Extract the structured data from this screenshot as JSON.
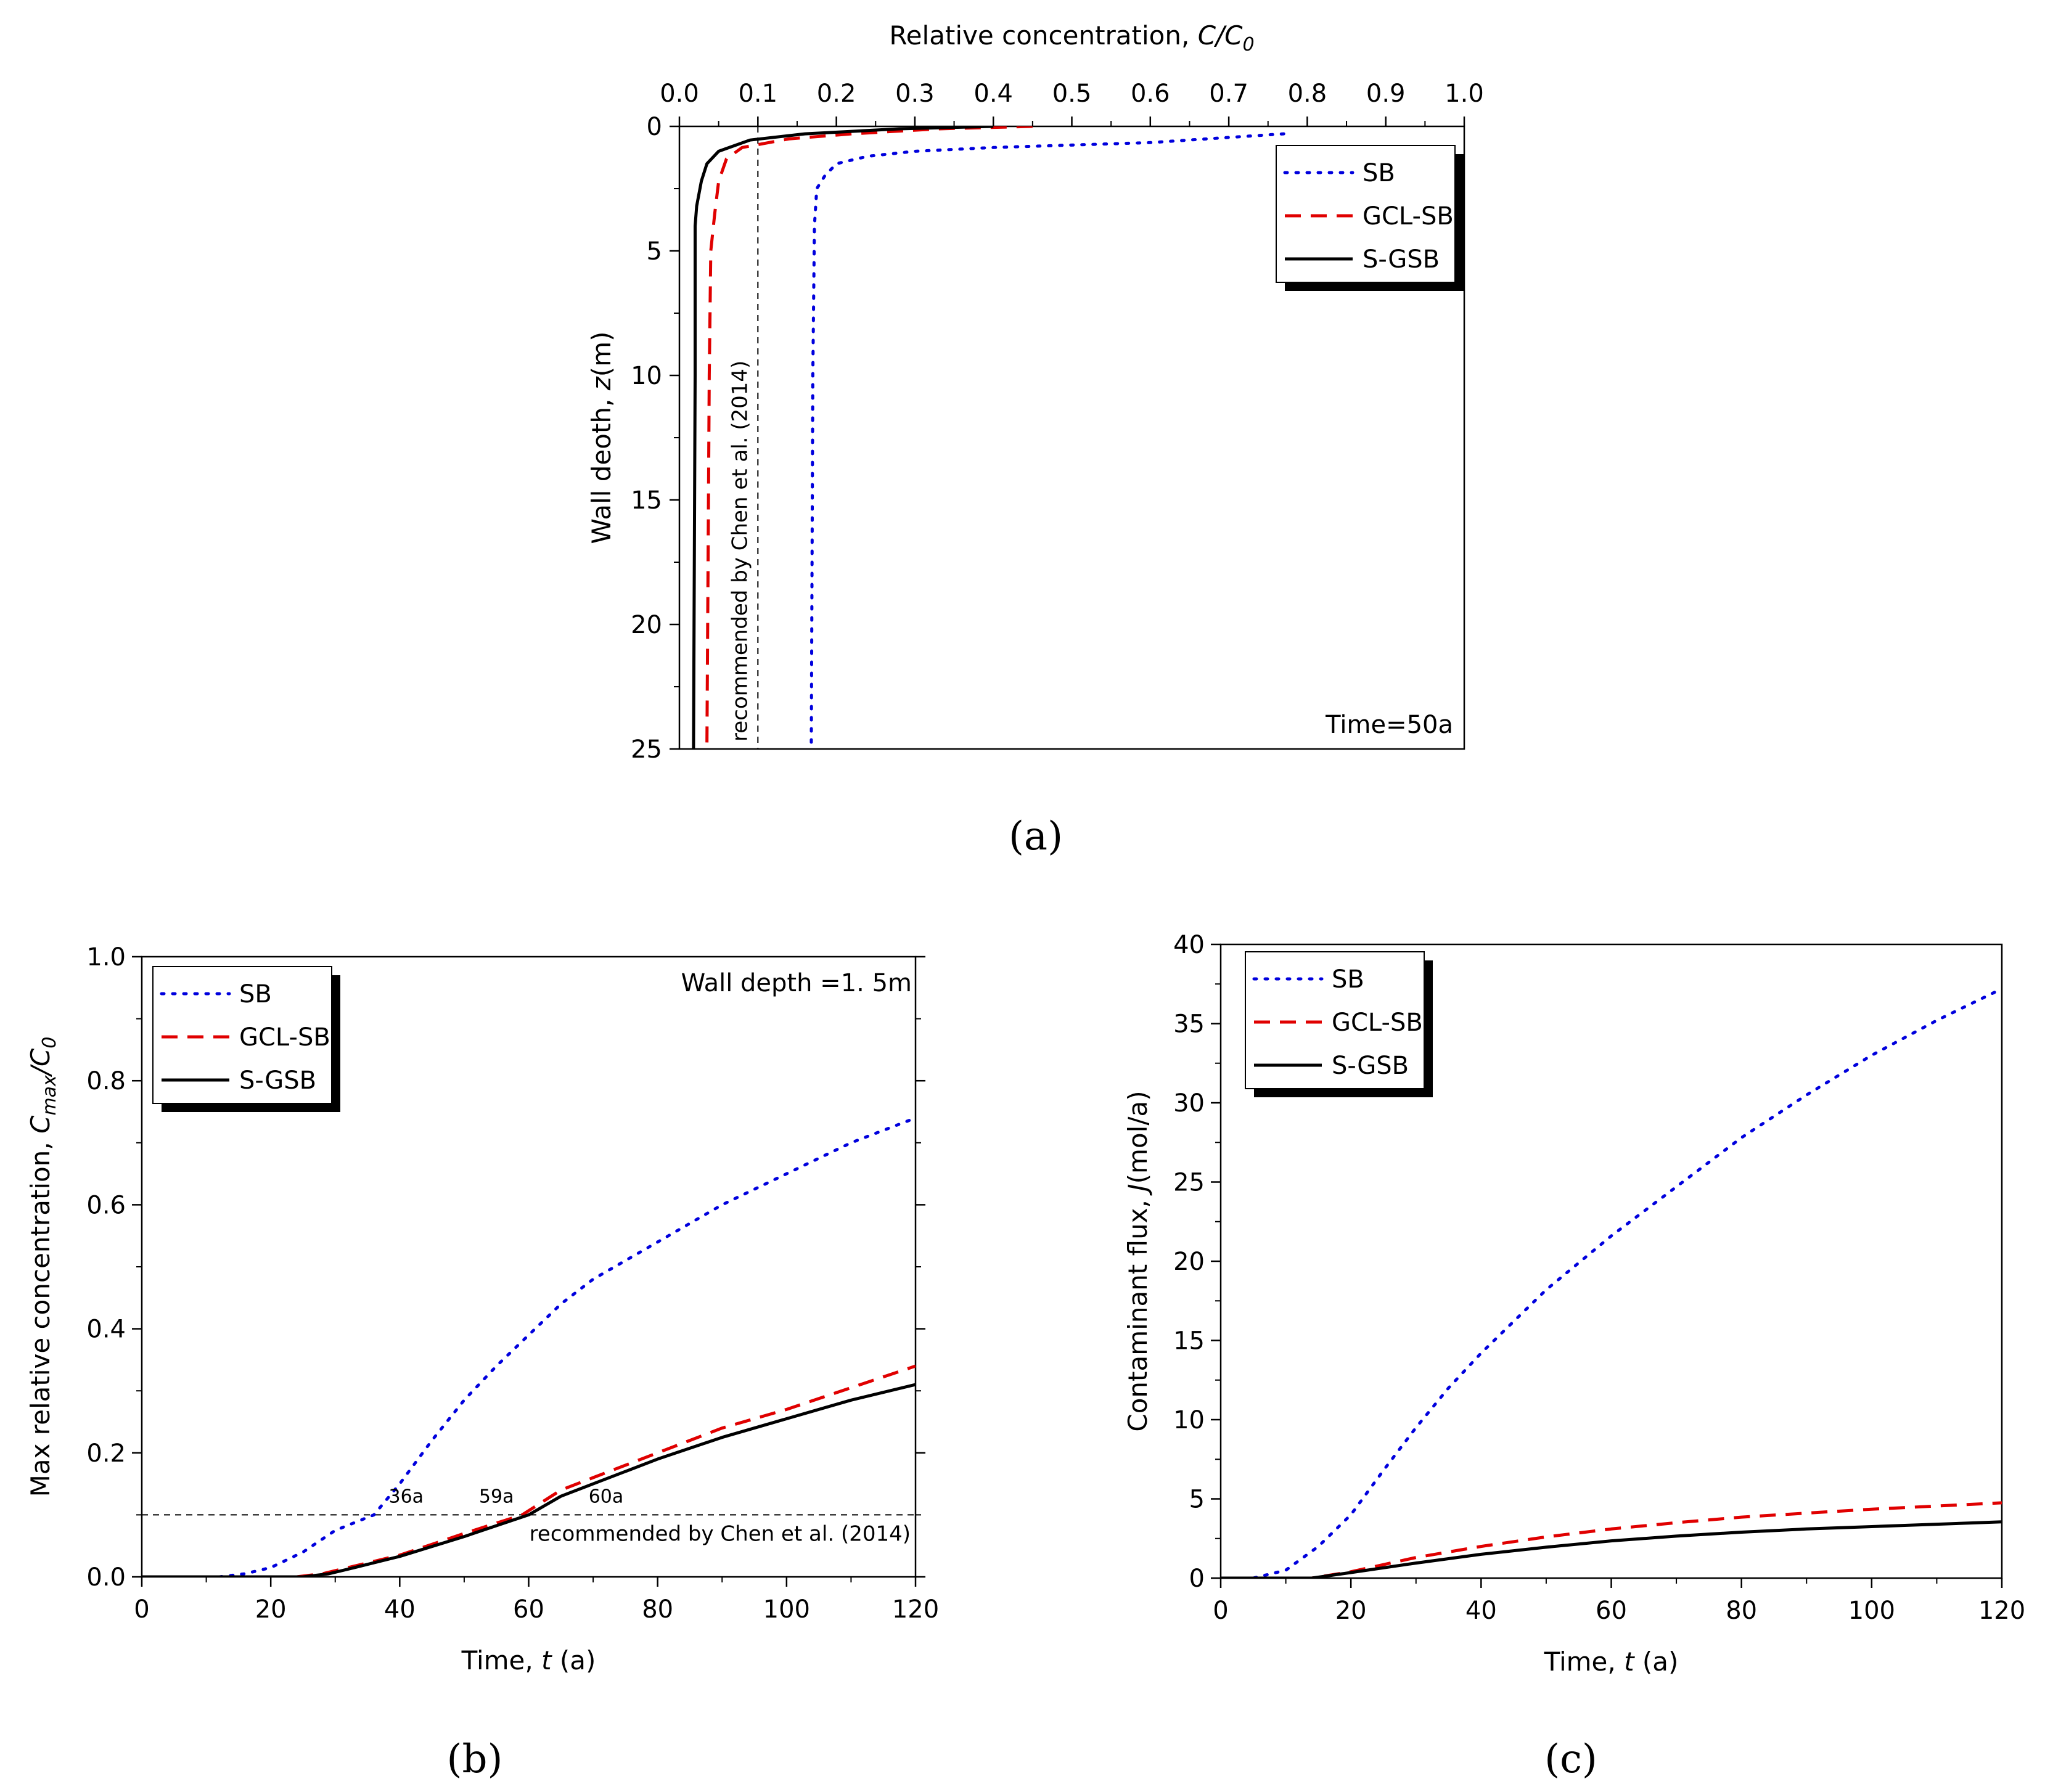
{
  "chart_data": [
    {
      "panel": "a",
      "panel_label": "a",
      "type": "line",
      "x_axis": {
        "label": "Relative concentration, ",
        "label_italic": "C/C",
        "label_sub": "0",
        "position": "top",
        "range": [
          0,
          1.0
        ],
        "ticks": [
          "0.0",
          "0.1",
          "0.2",
          "0.3",
          "0.4",
          "0.5",
          "0.6",
          "0.7",
          "0.8",
          "0.9",
          "1.0"
        ],
        "tick_values": [
          0,
          0.1,
          0.2,
          0.3,
          0.4,
          0.5,
          0.6,
          0.7,
          0.8,
          0.9,
          1.0
        ]
      },
      "y_axis": {
        "label": "Wall deoth, ",
        "label_italic": "z",
        "label_suffix": "(m)",
        "range": [
          0,
          25
        ],
        "inverted": true,
        "ticks": [
          "0",
          "5",
          "10",
          "15",
          "20",
          "25"
        ],
        "tick_values": [
          0,
          5,
          10,
          15,
          20,
          25
        ]
      },
      "series": [
        {
          "name": "SB",
          "style": "dotted",
          "color": "#0000dd",
          "points": [
            [
              0.77,
              0.3
            ],
            [
              0.6,
              0.65
            ],
            [
              0.4,
              0.85
            ],
            [
              0.3,
              1.0
            ],
            [
              0.24,
              1.2
            ],
            [
              0.2,
              1.5
            ],
            [
              0.185,
              2.0
            ],
            [
              0.175,
              2.5
            ],
            [
              0.172,
              4
            ],
            [
              0.17,
              10
            ],
            [
              0.168,
              25
            ]
          ]
        },
        {
          "name": "GCL-SB",
          "style": "dashed",
          "color": "#e00000",
          "points": [
            [
              0.45,
              0.0
            ],
            [
              0.33,
              0.1
            ],
            [
              0.22,
              0.3
            ],
            [
              0.14,
              0.5
            ],
            [
              0.08,
              0.85
            ],
            [
              0.06,
              1.3
            ],
            [
              0.05,
              2.2
            ],
            [
              0.045,
              3.5
            ],
            [
              0.04,
              5
            ],
            [
              0.038,
              10
            ],
            [
              0.035,
              25
            ]
          ]
        },
        {
          "name": "S-GSB",
          "style": "solid",
          "color": "#000000",
          "points": [
            [
              0.4,
              0.0
            ],
            [
              0.28,
              0.1
            ],
            [
              0.16,
              0.3
            ],
            [
              0.09,
              0.55
            ],
            [
              0.05,
              1.0
            ],
            [
              0.035,
              1.5
            ],
            [
              0.028,
              2.2
            ],
            [
              0.022,
              3.2
            ],
            [
              0.02,
              4
            ],
            [
              0.02,
              10
            ],
            [
              0.018,
              25
            ]
          ]
        }
      ],
      "reference_line": {
        "x": 0.1,
        "label": "recommended by Chen et al. (2014)"
      },
      "annotation": "Time=50a",
      "legend_position": "top-right"
    },
    {
      "panel": "b",
      "panel_label": "b",
      "type": "line",
      "x_axis": {
        "label": "Time, ",
        "label_italic": "t",
        "label_suffix": " (a)",
        "range": [
          0,
          120
        ],
        "ticks": [
          "0",
          "20",
          "40",
          "60",
          "80",
          "100",
          "120"
        ],
        "tick_values": [
          0,
          20,
          40,
          60,
          80,
          100,
          120
        ]
      },
      "y_axis": {
        "label": "Max relative concentration, ",
        "label_italic": "C",
        "label_sub": "max",
        "label_italic2": "/C",
        "label_sub2": "0",
        "range": [
          0,
          1.0
        ],
        "ticks": [
          "0.0",
          "0.2",
          "0.4",
          "0.6",
          "0.8",
          "1.0"
        ],
        "tick_values": [
          0,
          0.2,
          0.4,
          0.6,
          0.8,
          1.0
        ]
      },
      "series": [
        {
          "name": "SB",
          "style": "dotted",
          "color": "#0000dd",
          "points": [
            [
              0,
              0
            ],
            [
              12,
              0
            ],
            [
              16,
              0.005
            ],
            [
              20,
              0.015
            ],
            [
              25,
              0.04
            ],
            [
              30,
              0.075
            ],
            [
              36,
              0.1
            ],
            [
              40,
              0.15
            ],
            [
              45,
              0.22
            ],
            [
              50,
              0.285
            ],
            [
              55,
              0.34
            ],
            [
              60,
              0.39
            ],
            [
              65,
              0.44
            ],
            [
              70,
              0.48
            ],
            [
              80,
              0.54
            ],
            [
              90,
              0.6
            ],
            [
              100,
              0.65
            ],
            [
              110,
              0.7
            ],
            [
              120,
              0.74
            ]
          ]
        },
        {
          "name": "GCL-SB",
          "style": "dashed",
          "color": "#e00000",
          "points": [
            [
              0,
              0
            ],
            [
              24,
              0
            ],
            [
              28,
              0.005
            ],
            [
              32,
              0.015
            ],
            [
              40,
              0.035
            ],
            [
              50,
              0.07
            ],
            [
              59,
              0.1
            ],
            [
              65,
              0.14
            ],
            [
              70,
              0.16
            ],
            [
              80,
              0.2
            ],
            [
              90,
              0.24
            ],
            [
              100,
              0.27
            ],
            [
              110,
              0.305
            ],
            [
              120,
              0.34
            ]
          ]
        },
        {
          "name": "S-GSB",
          "style": "solid",
          "color": "#000000",
          "points": [
            [
              0,
              0
            ],
            [
              25,
              0
            ],
            [
              29,
              0.005
            ],
            [
              33,
              0.015
            ],
            [
              40,
              0.033
            ],
            [
              50,
              0.065
            ],
            [
              60,
              0.1
            ],
            [
              65,
              0.13
            ],
            [
              70,
              0.15
            ],
            [
              80,
              0.19
            ],
            [
              90,
              0.225
            ],
            [
              100,
              0.255
            ],
            [
              110,
              0.285
            ],
            [
              120,
              0.31
            ]
          ]
        }
      ],
      "reference_line": {
        "y": 0.1,
        "label": "recommended by Chen et al. (2014)"
      },
      "crossing_labels": [
        {
          "text": "36a",
          "x": 41,
          "y": 0.12
        },
        {
          "text": "59a",
          "x": 55,
          "y": 0.12
        },
        {
          "text": "60a",
          "x": 72,
          "y": 0.12
        }
      ],
      "annotation": "Wall depth =1. 5m",
      "legend_position": "top-left"
    },
    {
      "panel": "c",
      "panel_label": "c",
      "type": "line",
      "x_axis": {
        "label": "Time, ",
        "label_italic": "t",
        "label_suffix": " (a)",
        "range": [
          0,
          120
        ],
        "ticks": [
          "0",
          "20",
          "40",
          "60",
          "80",
          "100",
          "120"
        ],
        "tick_values": [
          0,
          20,
          40,
          60,
          80,
          100,
          120
        ]
      },
      "y_axis": {
        "label": "Contaminant flux, ",
        "label_italic": "J",
        "label_suffix": "(mol/a)",
        "range": [
          0,
          40
        ],
        "ticks": [
          "0",
          "5",
          "10",
          "15",
          "20",
          "25",
          "30",
          "35",
          "40"
        ],
        "tick_values": [
          0,
          5,
          10,
          15,
          20,
          25,
          30,
          35,
          40
        ]
      },
      "series": [
        {
          "name": "SB",
          "style": "dotted",
          "color": "#0000dd",
          "points": [
            [
              0,
              0
            ],
            [
              5,
              0
            ],
            [
              10,
              0.5
            ],
            [
              15,
              2
            ],
            [
              20,
              4
            ],
            [
              25,
              6.8
            ],
            [
              30,
              9.5
            ],
            [
              35,
              12
            ],
            [
              40,
              14.2
            ],
            [
              50,
              18.2
            ],
            [
              60,
              21.6
            ],
            [
              70,
              24.7
            ],
            [
              80,
              27.8
            ],
            [
              90,
              30.5
            ],
            [
              100,
              33
            ],
            [
              110,
              35.2
            ],
            [
              120,
              37.2
            ]
          ]
        },
        {
          "name": "GCL-SB",
          "style": "dashed",
          "color": "#e00000",
          "points": [
            [
              0,
              0
            ],
            [
              14,
              0
            ],
            [
              20,
              0.4
            ],
            [
              30,
              1.3
            ],
            [
              40,
              2
            ],
            [
              50,
              2.6
            ],
            [
              60,
              3.1
            ],
            [
              70,
              3.5
            ],
            [
              80,
              3.85
            ],
            [
              90,
              4.1
            ],
            [
              100,
              4.35
            ],
            [
              110,
              4.55
            ],
            [
              120,
              4.75
            ]
          ]
        },
        {
          "name": "S-GSB",
          "style": "solid",
          "color": "#000000",
          "points": [
            [
              0,
              0
            ],
            [
              14,
              0
            ],
            [
              20,
              0.35
            ],
            [
              30,
              0.95
            ],
            [
              40,
              1.5
            ],
            [
              50,
              1.95
            ],
            [
              60,
              2.35
            ],
            [
              70,
              2.65
            ],
            [
              80,
              2.9
            ],
            [
              90,
              3.1
            ],
            [
              100,
              3.25
            ],
            [
              110,
              3.4
            ],
            [
              120,
              3.55
            ]
          ]
        }
      ],
      "legend_position": "top-left"
    }
  ]
}
